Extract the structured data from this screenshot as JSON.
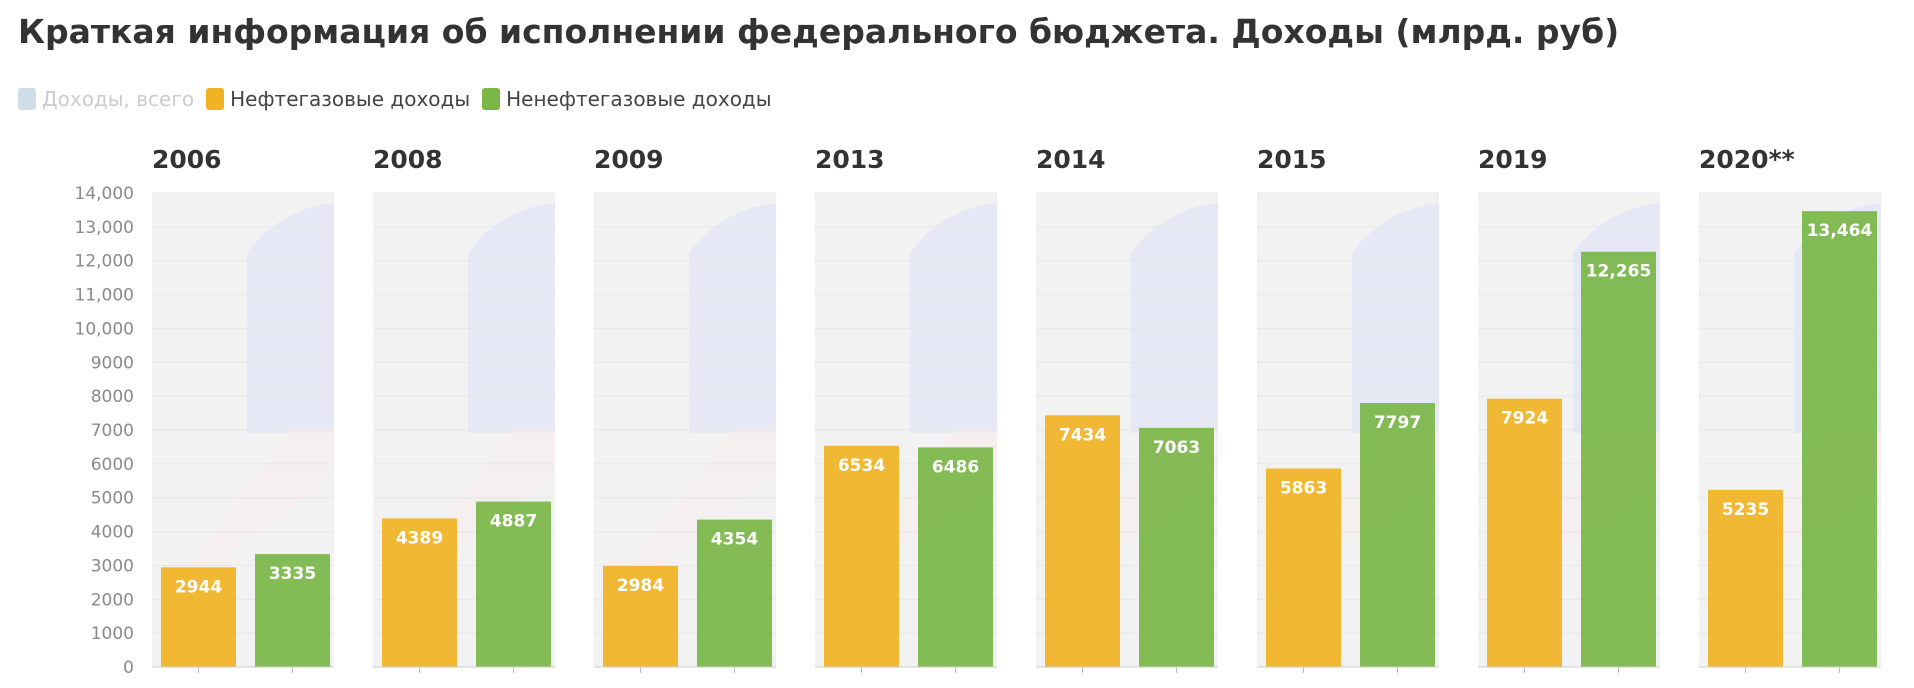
{
  "title": "Краткая информация об исполнении федерального бюджета. Доходы (млрд. руб)",
  "legend": [
    {
      "label": "Доходы, всего",
      "color": "#cfdde8",
      "active": false
    },
    {
      "label": "Нефтегазовые доходы",
      "color": "#f0b323",
      "active": true
    },
    {
      "label": "Ненефтегазовые доходы",
      "color": "#7ab648",
      "active": true
    }
  ],
  "chart_data": {
    "type": "bar",
    "title": "Краткая информация об исполнении федерального бюджета. Доходы (млрд. руб)",
    "ylabel": "",
    "ylim": [
      0,
      14000
    ],
    "yticks": [
      0,
      1000,
      2000,
      3000,
      4000,
      5000,
      6000,
      7000,
      8000,
      9000,
      10000,
      11000,
      12000,
      13000,
      14000
    ],
    "ytick_labels": [
      "0",
      "1000",
      "2000",
      "3000",
      "4000",
      "5000",
      "6000",
      "7000",
      "8000",
      "9000",
      "10,000",
      "11,000",
      "12,000",
      "13,000",
      "14,000"
    ],
    "grid": true,
    "legend_position": "top-left",
    "series_names": [
      "Нефтегазовые доходы",
      "Ненефтегазовые доходы"
    ],
    "series_colors": [
      "#f0b323",
      "#7ab648"
    ],
    "panels": [
      {
        "year": "2006",
        "values": [
          2944,
          3335
        ],
        "labels": [
          "2944",
          "3335"
        ]
      },
      {
        "year": "2008",
        "values": [
          4389,
          4887
        ],
        "labels": [
          "4389",
          "4887"
        ]
      },
      {
        "year": "2009",
        "values": [
          2984,
          4354
        ],
        "labels": [
          "2984",
          "4354"
        ]
      },
      {
        "year": "2013",
        "values": [
          6534,
          6486
        ],
        "labels": [
          "6534",
          "6486"
        ]
      },
      {
        "year": "2014",
        "values": [
          7434,
          7063
        ],
        "labels": [
          "7434",
          "7063"
        ]
      },
      {
        "year": "2015",
        "values": [
          5863,
          7797
        ],
        "labels": [
          "5863",
          "7797"
        ]
      },
      {
        "year": "2019",
        "values": [
          7924,
          12265
        ],
        "labels": [
          "7924",
          "12,265"
        ]
      },
      {
        "year": "2020**",
        "values": [
          5235,
          13464
        ],
        "labels": [
          "5235",
          "13,464"
        ]
      }
    ]
  }
}
